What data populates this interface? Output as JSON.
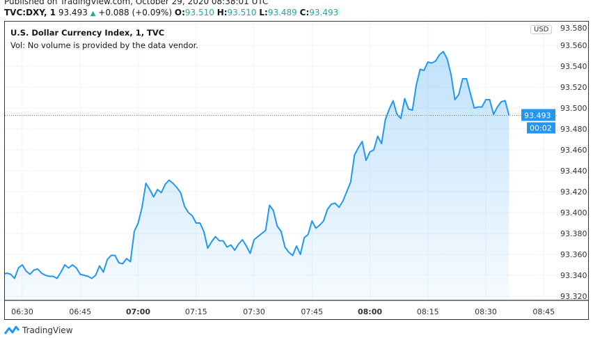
{
  "published": "Published on TradingView.com, October 29, 2020 08:38:01 UTC",
  "header": {
    "symbol": "TVC:DXY, 1",
    "price": "93.493",
    "change": "+0.088 (+0.09%)",
    "o_label": "O:",
    "o": "93.510",
    "h_label": "H:",
    "h": "93.510",
    "l_label": "L:",
    "l": "93.489",
    "c_label": "C:",
    "c": "93.493",
    "up_color": "#26a69a"
  },
  "legend": {
    "title": "U.S. Dollar Currency Index, 1, TVC",
    "vol": "Vol: No volume is provided by the data vendor."
  },
  "currency": "USD",
  "last_price_label": "93.493",
  "countdown": "00:02",
  "logo": "TradingView",
  "chart_data": {
    "type": "area",
    "line_color": "#2196f3",
    "grid": true,
    "ylim": [
      93.316,
      93.584
    ],
    "y_ticks": [
      "93.580",
      "93.560",
      "93.540",
      "93.520",
      "93.500",
      "93.480",
      "93.460",
      "93.440",
      "93.420",
      "93.400",
      "93.380",
      "93.360",
      "93.340",
      "93.320"
    ],
    "x_ticks": [
      "06:30",
      "06:45",
      "07:00",
      "07:15",
      "07:30",
      "07:45",
      "08:00",
      "08:15",
      "08:30",
      "08:45"
    ],
    "x": [
      "06:25",
      "06:26",
      "06:27",
      "06:28",
      "06:29",
      "06:30",
      "06:31",
      "06:32",
      "06:33",
      "06:34",
      "06:35",
      "06:36",
      "06:37",
      "06:38",
      "06:39",
      "06:40",
      "06:41",
      "06:42",
      "06:43",
      "06:44",
      "06:45",
      "06:46",
      "06:47",
      "06:48",
      "06:49",
      "06:50",
      "06:51",
      "06:52",
      "06:53",
      "06:54",
      "06:55",
      "06:56",
      "06:57",
      "06:58",
      "06:59",
      "07:00",
      "07:01",
      "07:02",
      "07:03",
      "07:04",
      "07:05",
      "07:06",
      "07:07",
      "07:08",
      "07:09",
      "07:10",
      "07:11",
      "07:12",
      "07:13",
      "07:14",
      "07:15",
      "07:16",
      "07:17",
      "07:18",
      "07:19",
      "07:20",
      "07:21",
      "07:22",
      "07:23",
      "07:24",
      "07:25",
      "07:26",
      "07:27",
      "07:28",
      "07:29",
      "07:30",
      "07:31",
      "07:32",
      "07:33",
      "07:34",
      "07:35",
      "07:36",
      "07:37",
      "07:38",
      "07:39",
      "07:40",
      "07:41",
      "07:42",
      "07:43",
      "07:44",
      "07:45",
      "07:46",
      "07:47",
      "07:48",
      "07:49",
      "07:50",
      "07:51",
      "07:52",
      "07:53",
      "07:54",
      "07:55",
      "07:56",
      "07:57",
      "07:58",
      "07:59",
      "08:00",
      "08:01",
      "08:02",
      "08:03",
      "08:04",
      "08:05",
      "08:06",
      "08:07",
      "08:08",
      "08:09",
      "08:10",
      "08:11",
      "08:12",
      "08:13",
      "08:14",
      "08:15",
      "08:16",
      "08:17",
      "08:18",
      "08:19",
      "08:20",
      "08:21",
      "08:22",
      "08:23",
      "08:24",
      "08:25",
      "08:26",
      "08:27",
      "08:28",
      "08:29",
      "08:30",
      "08:31",
      "08:32",
      "08:33",
      "08:34",
      "08:35",
      "08:36"
    ],
    "values": [
      93.341,
      93.342,
      93.341,
      93.337,
      93.347,
      93.35,
      93.344,
      93.341,
      93.345,
      93.346,
      93.342,
      93.34,
      93.339,
      93.339,
      93.337,
      93.343,
      93.35,
      93.347,
      93.35,
      93.347,
      93.341,
      93.34,
      93.339,
      93.337,
      93.34,
      93.349,
      93.343,
      93.355,
      93.359,
      93.359,
      93.352,
      93.351,
      93.356,
      93.353,
      93.382,
      93.39,
      93.405,
      93.428,
      93.422,
      93.415,
      93.422,
      93.419,
      93.427,
      93.431,
      93.428,
      93.424,
      93.419,
      93.406,
      93.4,
      93.397,
      93.39,
      93.39,
      93.382,
      93.366,
      93.372,
      93.377,
      93.373,
      93.373,
      93.367,
      93.369,
      93.364,
      93.37,
      93.374,
      93.368,
      93.361,
      93.374,
      93.377,
      93.38,
      93.383,
      93.407,
      93.402,
      93.387,
      93.382,
      93.367,
      93.362,
      93.359,
      93.368,
      93.36,
      93.376,
      93.379,
      93.392,
      93.385,
      93.388,
      93.392,
      93.403,
      93.408,
      93.409,
      93.405,
      93.411,
      93.42,
      93.429,
      93.455,
      93.462,
      93.468,
      93.45,
      93.458,
      93.46,
      93.473,
      93.466,
      93.489,
      93.499,
      93.507,
      93.494,
      93.49,
      93.509,
      93.499,
      93.498,
      93.522,
      93.537,
      93.536,
      93.544,
      93.543,
      93.545,
      93.551,
      93.554,
      93.547,
      93.532,
      93.508,
      93.513,
      93.528,
      93.528,
      93.514,
      93.5,
      93.501,
      93.501,
      93.508,
      93.508,
      93.494,
      93.501,
      93.506,
      93.507,
      93.493
    ],
    "last_value": 93.493
  }
}
